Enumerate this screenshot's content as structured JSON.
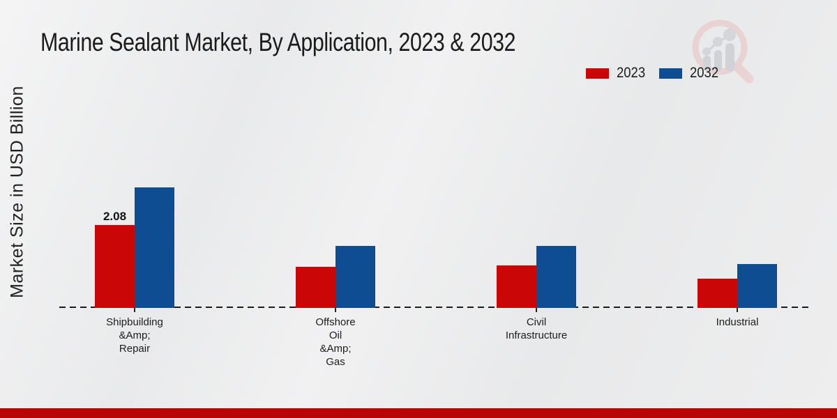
{
  "page": {
    "title": "Marine Sealant Market, By Application, 2023 & 2032",
    "ylabel": "Market Size in USD Billion"
  },
  "legend": {
    "items": [
      {
        "label": "2023",
        "color": "#ca0607"
      },
      {
        "label": "2032",
        "color": "#0e4d92"
      }
    ]
  },
  "colors": {
    "series_2023": "#ca0607",
    "series_2032": "#0e4d92",
    "axis_line": "#1a1a1a",
    "bottom_band": "#b80404",
    "watermark_pink": "#e9c6c7",
    "watermark_gray": "#c3c5cb"
  },
  "chart_data": {
    "type": "bar",
    "title": "Marine Sealant Market, By Application, 2023 & 2032",
    "xlabel": "",
    "ylabel": "Market Size in USD Billion",
    "categories": [
      [
        "Shipbuilding",
        "&Amp;",
        "Repair"
      ],
      [
        "Offshore",
        "Oil",
        "&Amp;",
        "Gas"
      ],
      [
        "Civil",
        "Infrastructure"
      ],
      [
        "Industrial"
      ]
    ],
    "series": [
      {
        "name": "2023",
        "color": "#ca0607",
        "values": [
          2.08,
          1.04,
          1.07,
          0.73
        ]
      },
      {
        "name": "2032",
        "color": "#0e4d92",
        "values": [
          3.02,
          1.55,
          1.56,
          1.1
        ]
      }
    ],
    "data_labels": [
      {
        "series": "2023",
        "category_index": 0,
        "text": "2.08"
      }
    ],
    "axis": {
      "y_axis_visible": false,
      "y_ticks": [],
      "gridlines": false,
      "baseline_style": "dashed"
    },
    "ylim": [
      0,
      3.5
    ],
    "legend_position": "top-right"
  }
}
